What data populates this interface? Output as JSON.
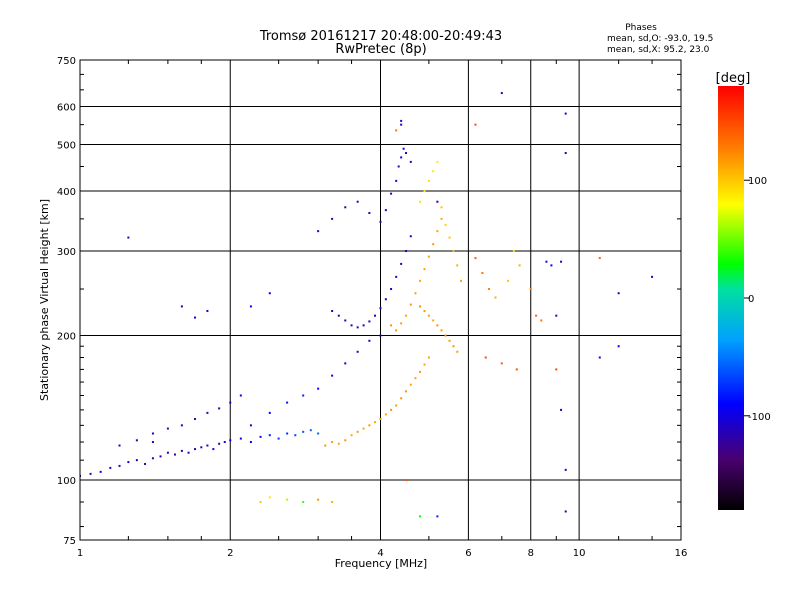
{
  "chart_data": {
    "type": "scatter",
    "title": "Tromsø 20161217 20:48:00-20:49:43",
    "subtitle": "RwPretec (8p)",
    "xlabel": "Frequency [MHz]",
    "ylabel": "Stationary phase Virtual Height [km]",
    "x_scale": "log2",
    "y_scale": "log",
    "xlim": [
      1,
      16
    ],
    "ylim": [
      75,
      750
    ],
    "x_ticks": [
      1,
      2,
      4,
      6,
      8,
      10,
      16
    ],
    "x_tick_labels": [
      "1",
      "2",
      "4",
      "6",
      "8",
      "10",
      "16"
    ],
    "y_ticks": [
      75,
      100,
      200,
      300,
      400,
      500,
      600,
      750
    ],
    "y_tick_labels": [
      "75",
      "100",
      "200",
      "300",
      "400",
      "500",
      "600",
      "750"
    ],
    "grid": true,
    "colorbar": {
      "label": "[deg]",
      "range": [
        -180,
        180
      ],
      "ticks": [
        100,
        0,
        -100
      ],
      "tick_labels": [
        "100",
        "0",
        "-100"
      ]
    },
    "phases_header": {
      "title": "Phases",
      "line1": "mean, sd,O: -93.0, 19.5",
      "line2": "mean, sd,X:  95.2, 23.0"
    },
    "points": [
      [
        1.0,
        102,
        -110
      ],
      [
        1.05,
        103,
        -115
      ],
      [
        1.1,
        104,
        -112
      ],
      [
        1.15,
        106,
        -108
      ],
      [
        1.2,
        107,
        -118
      ],
      [
        1.25,
        109,
        -105
      ],
      [
        1.3,
        110,
        -110
      ],
      [
        1.35,
        108,
        -125
      ],
      [
        1.4,
        111,
        -115
      ],
      [
        1.45,
        112,
        -120
      ],
      [
        1.5,
        114,
        -108
      ],
      [
        1.55,
        113,
        -130
      ],
      [
        1.6,
        115,
        -115
      ],
      [
        1.65,
        114,
        -122
      ],
      [
        1.7,
        116,
        -110
      ],
      [
        1.75,
        117,
        -105
      ],
      [
        1.8,
        118,
        -112
      ],
      [
        1.85,
        116,
        -100
      ],
      [
        1.9,
        119,
        -110
      ],
      [
        1.95,
        120,
        -95
      ],
      [
        2.0,
        121,
        -100
      ],
      [
        2.1,
        122,
        -95
      ],
      [
        2.2,
        120,
        -90
      ],
      [
        2.3,
        123,
        -88
      ],
      [
        2.4,
        124,
        -80
      ],
      [
        2.5,
        122,
        -75
      ],
      [
        2.6,
        125,
        -72
      ],
      [
        2.7,
        124,
        -65
      ],
      [
        2.8,
        126,
        -60
      ],
      [
        2.9,
        127,
        -58
      ],
      [
        3.0,
        125,
        -55
      ],
      [
        3.1,
        118,
        120
      ],
      [
        3.2,
        120,
        115
      ],
      [
        3.3,
        119,
        112
      ],
      [
        3.4,
        121,
        118
      ],
      [
        3.5,
        124,
        110
      ],
      [
        3.6,
        126,
        115
      ],
      [
        3.7,
        128,
        112
      ],
      [
        3.8,
        130,
        118
      ],
      [
        3.9,
        132,
        110
      ],
      [
        4.0,
        134,
        115
      ],
      [
        4.1,
        137,
        112
      ],
      [
        4.2,
        140,
        118
      ],
      [
        4.3,
        143,
        115
      ],
      [
        4.4,
        148,
        120
      ],
      [
        4.5,
        153,
        118
      ],
      [
        4.6,
        158,
        112
      ],
      [
        4.7,
        163,
        115
      ],
      [
        4.8,
        168,
        118
      ],
      [
        4.9,
        174,
        112
      ],
      [
        5.0,
        180,
        115
      ],
      [
        1.2,
        118,
        -120
      ],
      [
        1.3,
        121,
        -125
      ],
      [
        1.4,
        125,
        -110
      ],
      [
        1.5,
        128,
        -115
      ],
      [
        1.6,
        130,
        -105
      ],
      [
        1.7,
        134,
        -120
      ],
      [
        1.8,
        138,
        -110
      ],
      [
        1.9,
        141,
        -115
      ],
      [
        2.0,
        145,
        -100
      ],
      [
        2.1,
        150,
        -95
      ],
      [
        2.2,
        130,
        -100
      ],
      [
        2.4,
        138,
        -90
      ],
      [
        2.6,
        145,
        -85
      ],
      [
        2.8,
        150,
        -80
      ],
      [
        3.0,
        155,
        -90
      ],
      [
        3.2,
        165,
        -95
      ],
      [
        3.4,
        175,
        -110
      ],
      [
        3.6,
        185,
        -105
      ],
      [
        3.8,
        195,
        -110
      ],
      [
        4.0,
        200,
        -100
      ],
      [
        3.2,
        225,
        -110
      ],
      [
        3.3,
        220,
        -115
      ],
      [
        3.4,
        215,
        -112
      ],
      [
        3.5,
        210,
        -118
      ],
      [
        3.6,
        208,
        -110
      ],
      [
        3.7,
        210,
        -105
      ],
      [
        3.8,
        214,
        -115
      ],
      [
        3.9,
        220,
        -110
      ],
      [
        4.0,
        228,
        -108
      ],
      [
        4.1,
        238,
        -112
      ],
      [
        4.2,
        250,
        -110
      ],
      [
        4.3,
        265,
        -105
      ],
      [
        4.4,
        282,
        -110
      ],
      [
        4.5,
        300,
        -108
      ],
      [
        4.6,
        322,
        -112
      ],
      [
        3.0,
        330,
        -110
      ],
      [
        3.2,
        350,
        -115
      ],
      [
        3.4,
        370,
        -118
      ],
      [
        3.6,
        380,
        -112
      ],
      [
        3.8,
        360,
        -120
      ],
      [
        4.0,
        345,
        -110
      ],
      [
        4.1,
        365,
        -115
      ],
      [
        4.2,
        395,
        -108
      ],
      [
        4.3,
        420,
        -112
      ],
      [
        4.35,
        450,
        -110
      ],
      [
        4.4,
        470,
        -105
      ],
      [
        4.45,
        490,
        -110
      ],
      [
        4.5,
        480,
        -108
      ],
      [
        4.6,
        460,
        -112
      ],
      [
        4.4,
        550,
        -110
      ],
      [
        4.4,
        560,
        -115
      ],
      [
        4.2,
        210,
        120
      ],
      [
        4.3,
        205,
        118
      ],
      [
        4.4,
        212,
        115
      ],
      [
        4.5,
        220,
        112
      ],
      [
        4.6,
        232,
        118
      ],
      [
        4.7,
        245,
        115
      ],
      [
        4.8,
        260,
        110
      ],
      [
        4.9,
        275,
        112
      ],
      [
        5.0,
        292,
        115
      ],
      [
        5.1,
        310,
        118
      ],
      [
        5.2,
        330,
        112
      ],
      [
        5.3,
        350,
        110
      ],
      [
        4.8,
        380,
        90
      ],
      [
        4.9,
        400,
        85
      ],
      [
        5.0,
        420,
        90
      ],
      [
        5.1,
        440,
        88
      ],
      [
        5.2,
        460,
        85
      ],
      [
        5.3,
        370,
        100
      ],
      [
        5.4,
        340,
        95
      ],
      [
        5.5,
        320,
        100
      ],
      [
        5.6,
        300,
        105
      ],
      [
        5.7,
        280,
        110
      ],
      [
        5.8,
        260,
        115
      ],
      [
        4.8,
        230,
        120
      ],
      [
        4.9,
        225,
        118
      ],
      [
        5.0,
        220,
        115
      ],
      [
        5.1,
        215,
        112
      ],
      [
        5.2,
        210,
        120
      ],
      [
        5.3,
        205,
        118
      ],
      [
        5.4,
        200,
        122
      ],
      [
        5.5,
        195,
        118
      ],
      [
        5.6,
        190,
        120
      ],
      [
        5.7,
        185,
        115
      ],
      [
        6.2,
        290,
        140
      ],
      [
        6.4,
        270,
        130
      ],
      [
        6.6,
        250,
        125
      ],
      [
        6.8,
        240,
        110
      ],
      [
        7.2,
        260,
        100
      ],
      [
        7.4,
        300,
        90
      ],
      [
        7.6,
        280,
        110
      ],
      [
        8.0,
        250,
        130
      ],
      [
        8.2,
        220,
        140
      ],
      [
        8.4,
        215,
        130
      ],
      [
        8.6,
        285,
        -100
      ],
      [
        8.8,
        280,
        -90
      ],
      [
        9.0,
        220,
        -100
      ],
      [
        9.2,
        285,
        -110
      ],
      [
        6.5,
        180,
        150
      ],
      [
        7.0,
        175,
        140
      ],
      [
        7.5,
        170,
        145
      ],
      [
        9.0,
        170,
        150
      ],
      [
        9.2,
        140,
        -110
      ],
      [
        9.4,
        105,
        -110
      ],
      [
        9.4,
        86,
        -110
      ],
      [
        9.4,
        480,
        -110
      ],
      [
        9.4,
        580,
        -110
      ],
      [
        7.0,
        640,
        -110
      ],
      [
        6.2,
        550,
        150
      ],
      [
        5.2,
        380,
        -110
      ],
      [
        4.3,
        535,
        130
      ],
      [
        2.3,
        90,
        100
      ],
      [
        2.4,
        92,
        90
      ],
      [
        2.6,
        91,
        60
      ],
      [
        2.8,
        90,
        40
      ],
      [
        3.0,
        91,
        120
      ],
      [
        3.2,
        90,
        110
      ],
      [
        4.5,
        100,
        150
      ],
      [
        4.8,
        84,
        30
      ],
      [
        5.2,
        84,
        -80
      ],
      [
        1.4,
        120,
        -110
      ],
      [
        1.6,
        230,
        -110
      ],
      [
        1.7,
        218,
        -105
      ],
      [
        1.8,
        225,
        -100
      ],
      [
        2.2,
        230,
        -90
      ],
      [
        2.4,
        245,
        -95
      ],
      [
        1.25,
        320,
        -120
      ],
      [
        11.0,
        290,
        140
      ],
      [
        12.0,
        245,
        -110
      ],
      [
        14.0,
        265,
        -110
      ],
      [
        11.0,
        180,
        -95
      ],
      [
        12.0,
        190,
        -90
      ]
    ]
  }
}
